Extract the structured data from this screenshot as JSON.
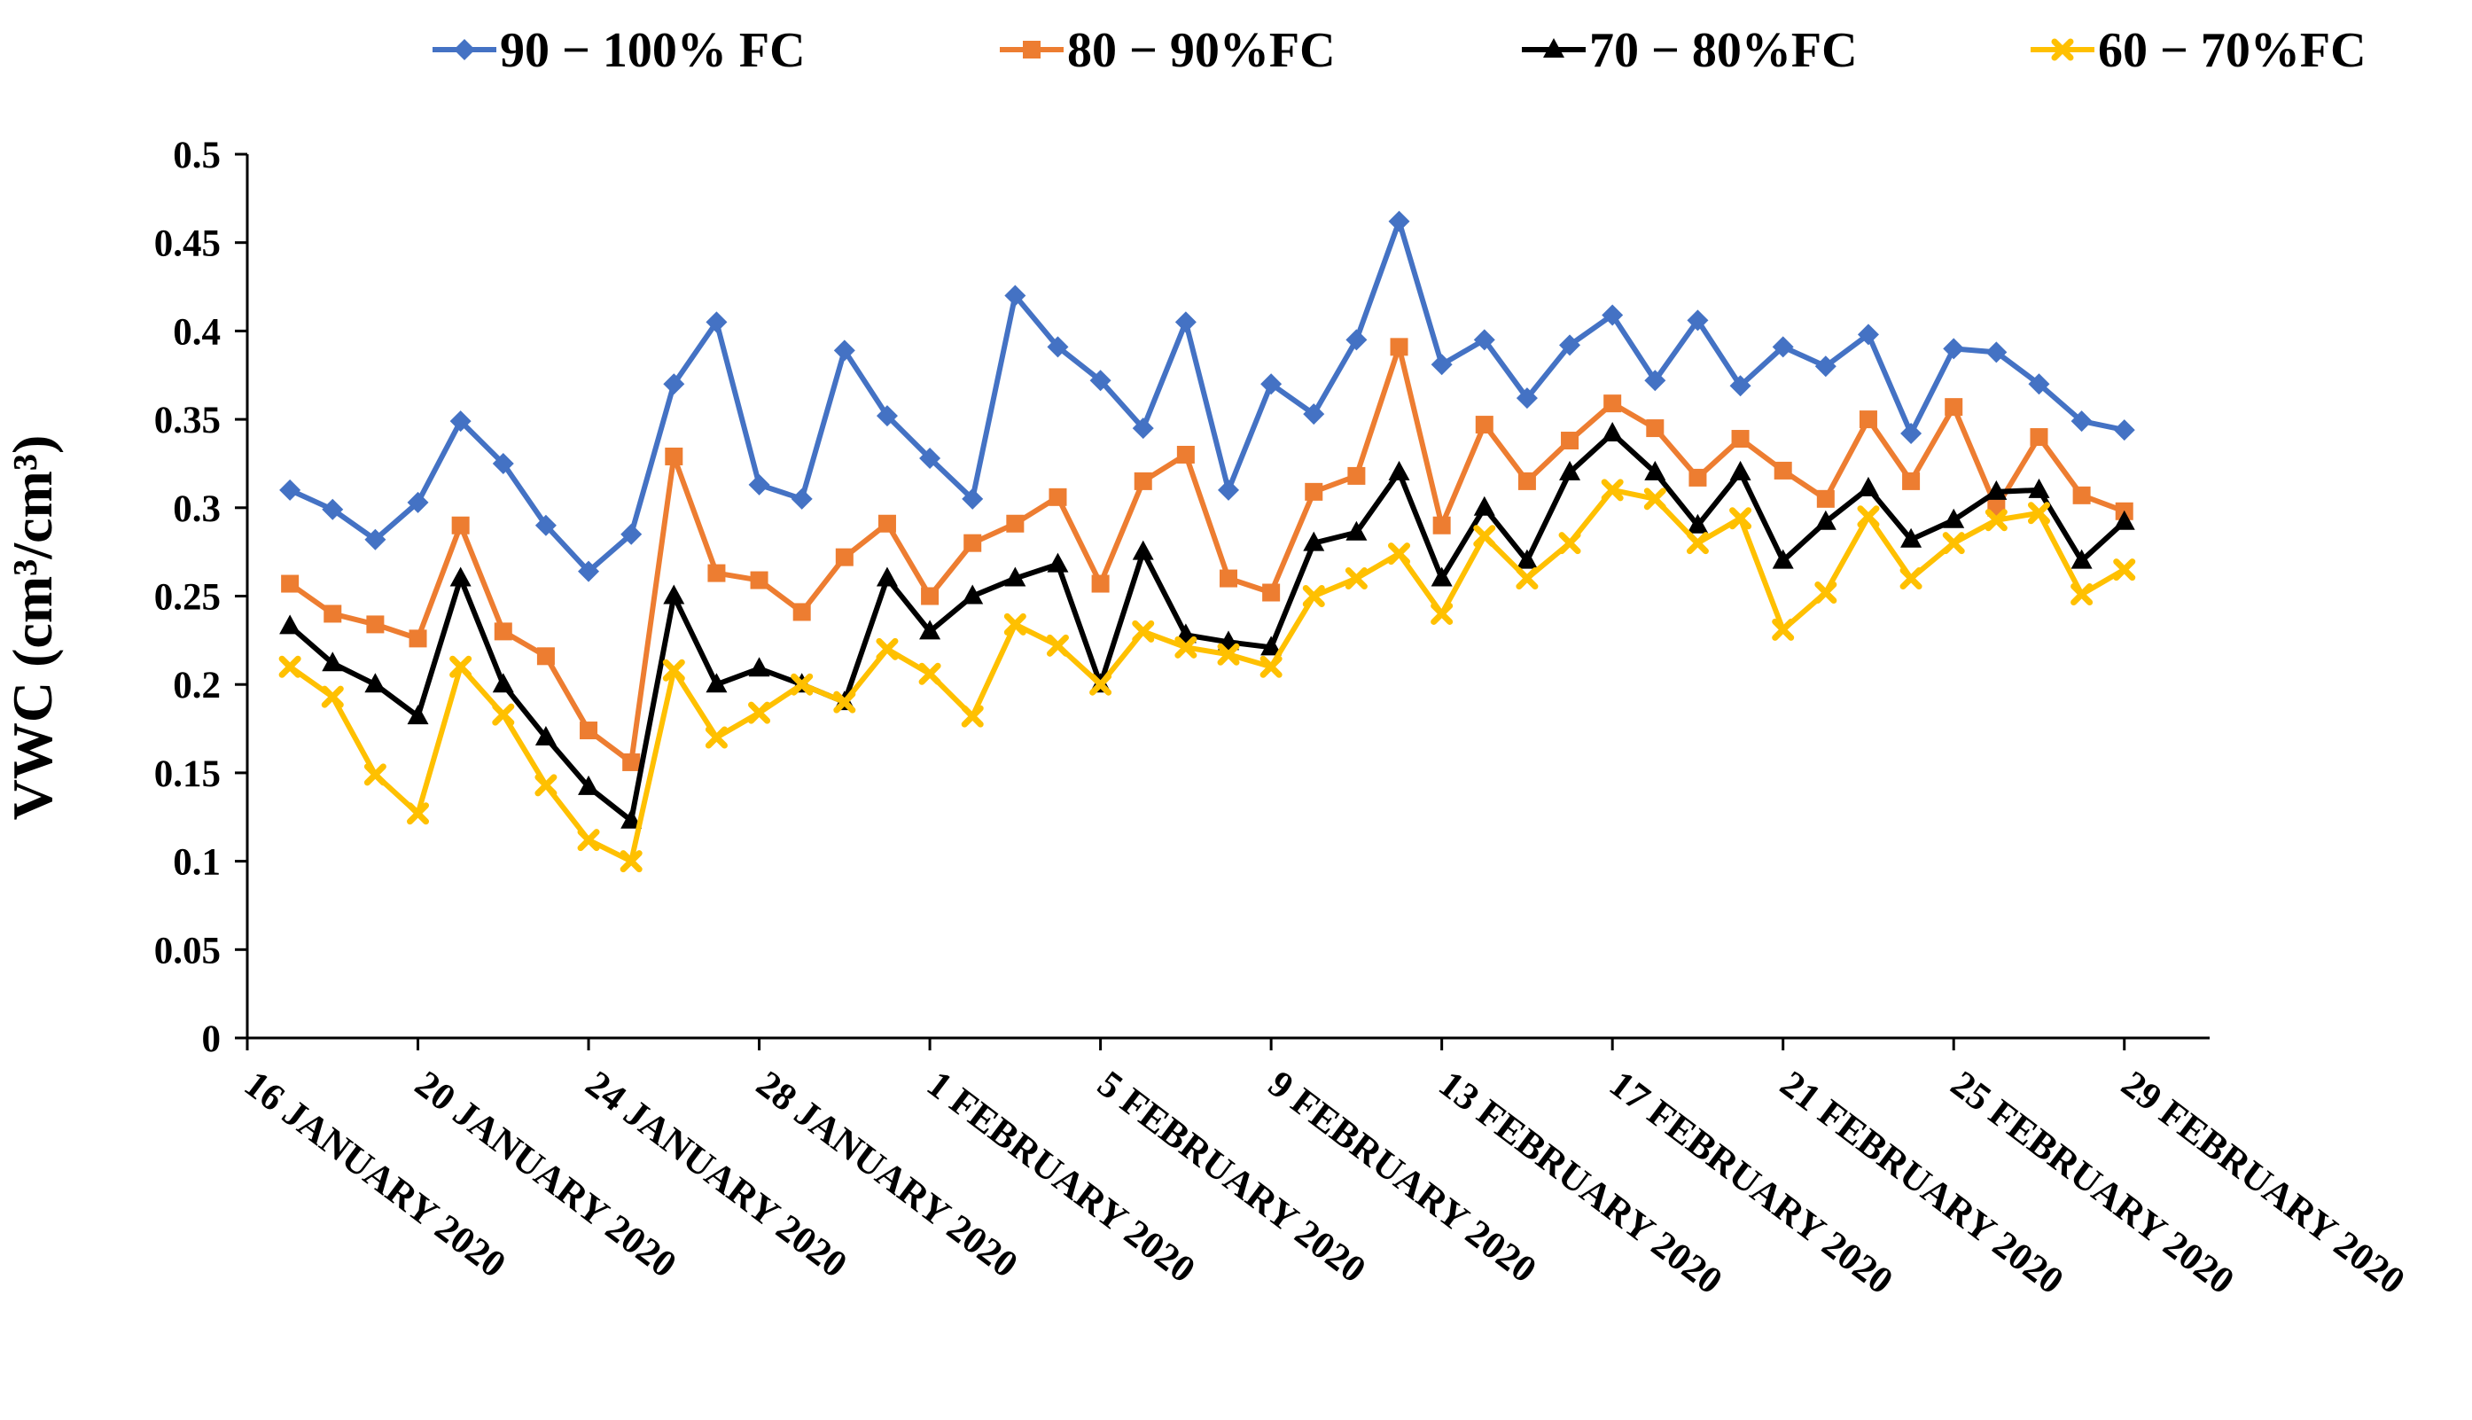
{
  "chart_data": {
    "type": "line",
    "title": "",
    "xlabel": "",
    "ylabel": "VWC (cm³/cm³)",
    "ylim": [
      0,
      0.5
    ],
    "ytick_step": 0.05,
    "grid": false,
    "legend_position": "top",
    "y_tick_labels": [
      "0",
      "0.05",
      "0.1",
      "0.15",
      "0.2",
      "0.25",
      "0.3",
      "0.35",
      "0.4",
      "0.45",
      "0.5"
    ],
    "x_tick_labels": [
      "16 JANUARY 2020",
      "20 JANUARY 2020",
      "24 JANUARY 2020",
      "28 JANUARY 2020",
      "1 FEBRUARY 2020",
      "5 FEBRUARY 2020",
      "9 FEBRUARY 2020",
      "13 FEBRUARY 2020",
      "17 FEBRUARY 2020",
      "21 FEBRUARY 2020",
      "25 FEBRUARY 2020",
      "29 FEBRUARY 2020"
    ],
    "x": [
      "2020-01-17",
      "2020-01-18",
      "2020-01-19",
      "2020-01-20",
      "2020-01-21",
      "2020-01-22",
      "2020-01-23",
      "2020-01-24",
      "2020-01-25",
      "2020-01-26",
      "2020-01-27",
      "2020-01-28",
      "2020-01-29",
      "2020-01-30",
      "2020-01-31",
      "2020-02-01",
      "2020-02-02",
      "2020-02-03",
      "2020-02-04",
      "2020-02-05",
      "2020-02-06",
      "2020-02-07",
      "2020-02-08",
      "2020-02-09",
      "2020-02-10",
      "2020-02-11",
      "2020-02-12",
      "2020-02-13",
      "2020-02-14",
      "2020-02-15",
      "2020-02-16",
      "2020-02-17",
      "2020-02-18",
      "2020-02-19",
      "2020-02-20",
      "2020-02-21",
      "2020-02-22",
      "2020-02-23",
      "2020-02-24",
      "2020-02-25",
      "2020-02-26",
      "2020-02-27",
      "2020-02-28",
      "2020-02-29"
    ],
    "series": [
      {
        "name": "90 − 100% FC",
        "color": "#4472C4",
        "marker": "diamond",
        "values": [
          0.31,
          0.299,
          0.282,
          0.303,
          0.349,
          0.325,
          0.29,
          0.264,
          0.285,
          0.37,
          0.405,
          0.313,
          0.305,
          0.389,
          0.352,
          0.328,
          0.305,
          0.42,
          0.391,
          0.372,
          0.345,
          0.405,
          0.31,
          0.37,
          0.353,
          0.395,
          0.462,
          0.381,
          0.395,
          0.362,
          0.392,
          0.409,
          0.372,
          0.406,
          0.369,
          0.391,
          0.38,
          0.398,
          0.342,
          0.39,
          0.388,
          0.37,
          0.349,
          0.344
        ]
      },
      {
        "name": "80 − 90%FC",
        "color": "#ED7D31",
        "marker": "square",
        "values": [
          0.257,
          0.24,
          0.234,
          0.226,
          0.29,
          0.23,
          0.216,
          0.174,
          0.156,
          0.329,
          0.263,
          0.259,
          0.241,
          0.272,
          0.291,
          0.25,
          0.28,
          0.291,
          0.306,
          0.257,
          0.315,
          0.33,
          0.26,
          0.252,
          0.309,
          0.318,
          0.391,
          0.29,
          0.347,
          0.315,
          0.338,
          0.359,
          0.345,
          0.317,
          0.339,
          0.321,
          0.305,
          0.35,
          0.315,
          0.357,
          0.3,
          0.34,
          0.307,
          0.298
        ]
      },
      {
        "name": "70 − 80%FC",
        "color": "#000000",
        "marker": "triangle",
        "values": [
          0.233,
          0.212,
          0.2,
          0.182,
          0.26,
          0.2,
          0.17,
          0.142,
          0.123,
          0.25,
          0.2,
          0.209,
          0.2,
          0.19,
          0.26,
          0.23,
          0.25,
          0.26,
          0.268,
          0.2,
          0.275,
          0.228,
          0.224,
          0.221,
          0.28,
          0.286,
          0.32,
          0.26,
          0.3,
          0.27,
          0.32,
          0.342,
          0.32,
          0.29,
          0.32,
          0.27,
          0.292,
          0.311,
          0.282,
          0.293,
          0.309,
          0.31,
          0.27,
          0.292
        ]
      },
      {
        "name": "60 − 70%FC",
        "color": "#FFC000",
        "marker": "x",
        "values": [
          0.21,
          0.193,
          0.149,
          0.127,
          0.21,
          0.183,
          0.143,
          0.112,
          0.1,
          0.208,
          0.17,
          0.184,
          0.2,
          0.19,
          0.22,
          0.206,
          0.182,
          0.234,
          0.222,
          0.2,
          0.23,
          0.221,
          0.217,
          0.21,
          0.25,
          0.26,
          0.274,
          0.24,
          0.284,
          0.26,
          0.28,
          0.31,
          0.305,
          0.28,
          0.294,
          0.231,
          0.252,
          0.295,
          0.26,
          0.28,
          0.293,
          0.297,
          0.251,
          0.265
        ]
      }
    ]
  }
}
